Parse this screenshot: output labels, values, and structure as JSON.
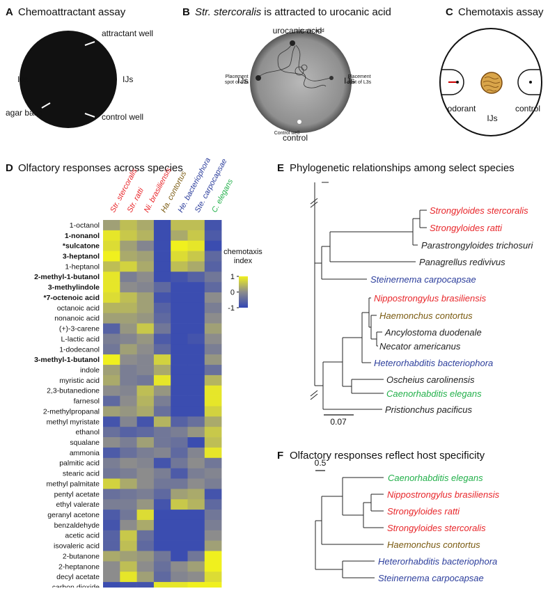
{
  "panel_a": {
    "letter": "A",
    "title": "Chemoattractant assay",
    "labels": [
      "attractant well",
      "IJs",
      "IJs",
      "agar base",
      "control well"
    ]
  },
  "panel_b": {
    "letter": "B",
    "title_species": "Str. stercoralis",
    "title_text": "is attracted to urocanic acid",
    "labels": [
      "urocanic acid",
      "IJs",
      "IJs",
      "control"
    ],
    "photo_labels": [
      {
        "lines": [
          "urocanic acid"
        ]
      },
      {
        "lines": [
          "Placement",
          "spot of L3s"
        ]
      },
      {
        "lines": [
          "Placement",
          "spot of L3s"
        ]
      },
      {
        "lines": [
          "Control well"
        ]
      }
    ]
  },
  "panel_c": {
    "letter": "C",
    "title": "Chemotaxis assay",
    "labels": [
      "odorant",
      "IJs",
      "control"
    ]
  },
  "chart_data": {
    "type": "heatmap",
    "letter": "D",
    "title": "Olfactory responses across species",
    "columns": [
      {
        "label": "Str. stercoralis",
        "color": "#e8262a"
      },
      {
        "label": "Str. ratti",
        "color": "#e8262a"
      },
      {
        "label": "Ni. brasiliensis",
        "color": "#e8262a"
      },
      {
        "label": "Ha. contortus",
        "color": "#7a5a10"
      },
      {
        "label": "He. bacteriophora",
        "color": "#2c3e9c"
      },
      {
        "label": "Ste. carpocapsae",
        "color": "#2c3e9c"
      },
      {
        "label": "C. elegans",
        "color": "#22b04a"
      }
    ],
    "rows": [
      {
        "label": "1-octanol",
        "bold": false,
        "values": [
          0.2,
          0.5,
          0.3,
          -0.9,
          0.5,
          0.5,
          -0.8
        ]
      },
      {
        "label": "1-nonanol",
        "bold": true,
        "values": [
          0.9,
          0.6,
          0.4,
          -0.9,
          0.3,
          0.6,
          -0.7
        ]
      },
      {
        "label": "*sulcatone",
        "bold": true,
        "values": [
          0.8,
          0.2,
          -0.1,
          -0.9,
          1,
          0.9,
          -0.9
        ]
      },
      {
        "label": "3-heptanol",
        "bold": true,
        "values": [
          1,
          0.3,
          0.2,
          -0.9,
          0.8,
          0.6,
          -0.5
        ]
      },
      {
        "label": "1-heptanol",
        "bold": false,
        "values": [
          0.5,
          0.7,
          0.3,
          -0.9,
          0.5,
          0.3,
          -0.6
        ]
      },
      {
        "label": "2-methyl-1-butanol",
        "bold": true,
        "values": [
          0.9,
          -0.2,
          0,
          -0.9,
          -0.8,
          -0.6,
          -0.3
        ]
      },
      {
        "label": "3-methylindole",
        "bold": true,
        "values": [
          0.9,
          0,
          -0.1,
          -0.5,
          -0.9,
          -0.9,
          -0.5
        ]
      },
      {
        "label": "*7-octenoic acid",
        "bold": true,
        "values": [
          0.8,
          0.5,
          0.2,
          -0.8,
          -0.9,
          -0.9,
          0
        ]
      },
      {
        "label": "octanoic acid",
        "bold": false,
        "values": [
          0.4,
          0.4,
          0.2,
          -0.6,
          -0.9,
          -0.9,
          -0.2
        ]
      },
      {
        "label": "nonanoic acid",
        "bold": false,
        "values": [
          0.2,
          0.2,
          0.1,
          -0.5,
          -0.9,
          -0.9,
          0
        ]
      },
      {
        "label": "(+)-3-carene",
        "bold": false,
        "values": [
          -0.6,
          0.1,
          0.6,
          -0.3,
          -0.9,
          -0.9,
          0.2
        ]
      },
      {
        "label": "L-lactic acid",
        "bold": false,
        "values": [
          -0.2,
          -0.1,
          0.1,
          -0.7,
          -0.9,
          -0.8,
          0
        ]
      },
      {
        "label": "1-dodecanol",
        "bold": false,
        "values": [
          -0.3,
          0.2,
          0,
          -0.5,
          -0.9,
          -0.9,
          -0.2
        ]
      },
      {
        "label": "3-methyl-1-butanol",
        "bold": true,
        "values": [
          1,
          0,
          -0.1,
          0.7,
          -0.9,
          -0.9,
          0.1
        ]
      },
      {
        "label": "indole",
        "bold": false,
        "values": [
          0.2,
          -0.2,
          -0.1,
          0.3,
          -0.9,
          -0.9,
          -0.4
        ]
      },
      {
        "label": "myristic acid",
        "bold": false,
        "values": [
          0.3,
          -0.2,
          -0.3,
          0.9,
          -0.9,
          -0.9,
          0.4
        ]
      },
      {
        "label": "2,3-butanedione",
        "bold": false,
        "values": [
          0,
          -0.1,
          0.5,
          0.1,
          -0.9,
          -0.9,
          0.9
        ]
      },
      {
        "label": "farnesol",
        "bold": false,
        "values": [
          -0.5,
          0,
          0.4,
          -0.2,
          -0.9,
          -0.9,
          0.9
        ]
      },
      {
        "label": "2-methylpropanal",
        "bold": false,
        "values": [
          0.2,
          0.1,
          0.3,
          -0.4,
          -0.9,
          -0.9,
          0.7
        ]
      },
      {
        "label": "methyl myristate",
        "bold": false,
        "values": [
          -0.8,
          -0.1,
          -0.8,
          0.4,
          -0.6,
          -0.4,
          0.3
        ]
      },
      {
        "label": "ethanol",
        "bold": false,
        "values": [
          -0.4,
          -0.6,
          -0.5,
          -0.3,
          -0.2,
          0.1,
          0.6
        ]
      },
      {
        "label": "squalane",
        "bold": false,
        "values": [
          0,
          -0.2,
          0.2,
          -0.3,
          -0.4,
          -0.9,
          0.5
        ]
      },
      {
        "label": "ammonia",
        "bold": false,
        "values": [
          -0.7,
          -0.4,
          -0.2,
          -0.1,
          -0.5,
          -0.1,
          0.9
        ]
      },
      {
        "label": "palmitic acid",
        "bold": false,
        "values": [
          -0.2,
          0,
          -0.1,
          -0.8,
          -0.3,
          0,
          -0.3
        ]
      },
      {
        "label": "stearic acid",
        "bold": false,
        "values": [
          -0.3,
          -0.2,
          0,
          -0.2,
          -0.7,
          -0.2,
          -0.1
        ]
      },
      {
        "label": "methyl palmitate",
        "bold": false,
        "values": [
          0.7,
          0.3,
          0,
          -0.3,
          -0.3,
          0,
          -0.2
        ]
      },
      {
        "label": "pentyl acetate",
        "bold": false,
        "values": [
          -0.4,
          -0.3,
          -0.2,
          -0.5,
          0.2,
          0.3,
          -0.8
        ]
      },
      {
        "label": "ethyl valerate",
        "bold": false,
        "values": [
          -0.2,
          -0.2,
          0.1,
          -0.8,
          0.6,
          0.4,
          -0.5
        ]
      },
      {
        "label": "geranyl acetone",
        "bold": false,
        "values": [
          -0.7,
          -0.3,
          0.8,
          -0.9,
          -0.9,
          -0.9,
          -0.3
        ]
      },
      {
        "label": "benzaldehyde",
        "bold": false,
        "values": [
          -0.8,
          0,
          0.3,
          -0.9,
          -0.9,
          -0.9,
          -0.2
        ]
      },
      {
        "label": "acetic acid",
        "bold": false,
        "values": [
          -0.6,
          0.6,
          -0.4,
          -0.9,
          -0.9,
          -0.9,
          0
        ]
      },
      {
        "label": "isovaleric acid",
        "bold": false,
        "values": [
          -0.6,
          0.5,
          -0.5,
          -0.9,
          -0.9,
          -0.9,
          0.2
        ]
      },
      {
        "label": "2-butanone",
        "bold": false,
        "values": [
          0.3,
          0.2,
          0.1,
          -0.3,
          -0.9,
          -0.3,
          1
        ]
      },
      {
        "label": "2-heptanone",
        "bold": false,
        "values": [
          0,
          0.5,
          0,
          -0.4,
          0,
          0.2,
          1
        ]
      },
      {
        "label": "decyl acetate",
        "bold": false,
        "values": [
          0,
          0.9,
          0.2,
          -0.5,
          -0.1,
          0,
          0.8
        ]
      },
      {
        "label": "carbon dioxide",
        "bold": false,
        "values": [
          -0.9,
          -0.8,
          -0.8,
          0.9,
          0.9,
          1,
          1
        ]
      }
    ],
    "colorbar": {
      "label_lines": [
        "chemotaxis",
        "index"
      ],
      "zlim": [
        -1,
        1
      ],
      "ticks": [
        1,
        0,
        -1
      ],
      "low_color": "#3246b4",
      "mid_color": "#8c8c8c",
      "high_color": "#f0f01e"
    }
  },
  "panel_e": {
    "letter": "E",
    "title": "Phylogenetic relationships among select species",
    "scale_label": "0.07",
    "leaves": [
      {
        "label": "Strongyloides stercoralis",
        "color": "#e8262a"
      },
      {
        "label": "Strongyloides ratti",
        "color": "#e8262a"
      },
      {
        "label": "Parastrongyloides trichosuri",
        "color": "#222"
      },
      {
        "label": "Panagrellus redivivus",
        "color": "#222"
      },
      {
        "label": "Steinernema carpocapsae",
        "color": "#2c3e9c"
      },
      {
        "label": "Nippostrongylus brasiliensis",
        "color": "#e8262a"
      },
      {
        "label": "Haemonchus contortus",
        "color": "#7a5a10"
      },
      {
        "label": "Ancylostoma duodenale",
        "color": "#222"
      },
      {
        "label": "Necator americanus",
        "color": "#222"
      },
      {
        "label": "Heterorhabditis bacteriophora",
        "color": "#2c3e9c"
      },
      {
        "label": "Oscheius carolinensis",
        "color": "#222"
      },
      {
        "label": "Caenorhabditis elegans",
        "color": "#22b04a"
      },
      {
        "label": "Pristionchus pacificus",
        "color": "#222"
      }
    ]
  },
  "panel_f": {
    "letter": "F",
    "title": "Olfactory responses reflect host specificity",
    "scale_label": "0.5",
    "leaves": [
      {
        "label": "Caenorhabditis elegans",
        "color": "#22b04a"
      },
      {
        "label": "Nippostrongylus brasiliensis",
        "color": "#e8262a"
      },
      {
        "label": "Strongyloides ratti",
        "color": "#e8262a"
      },
      {
        "label": "Strongyloides stercoralis",
        "color": "#e8262a"
      },
      {
        "label": "Haemonchus contortus",
        "color": "#7a5a10"
      },
      {
        "label": "Heterorhabditis bacteriophora",
        "color": "#2c3e9c"
      },
      {
        "label": "Steinernema carpocapsae",
        "color": "#2c3e9c"
      }
    ]
  }
}
